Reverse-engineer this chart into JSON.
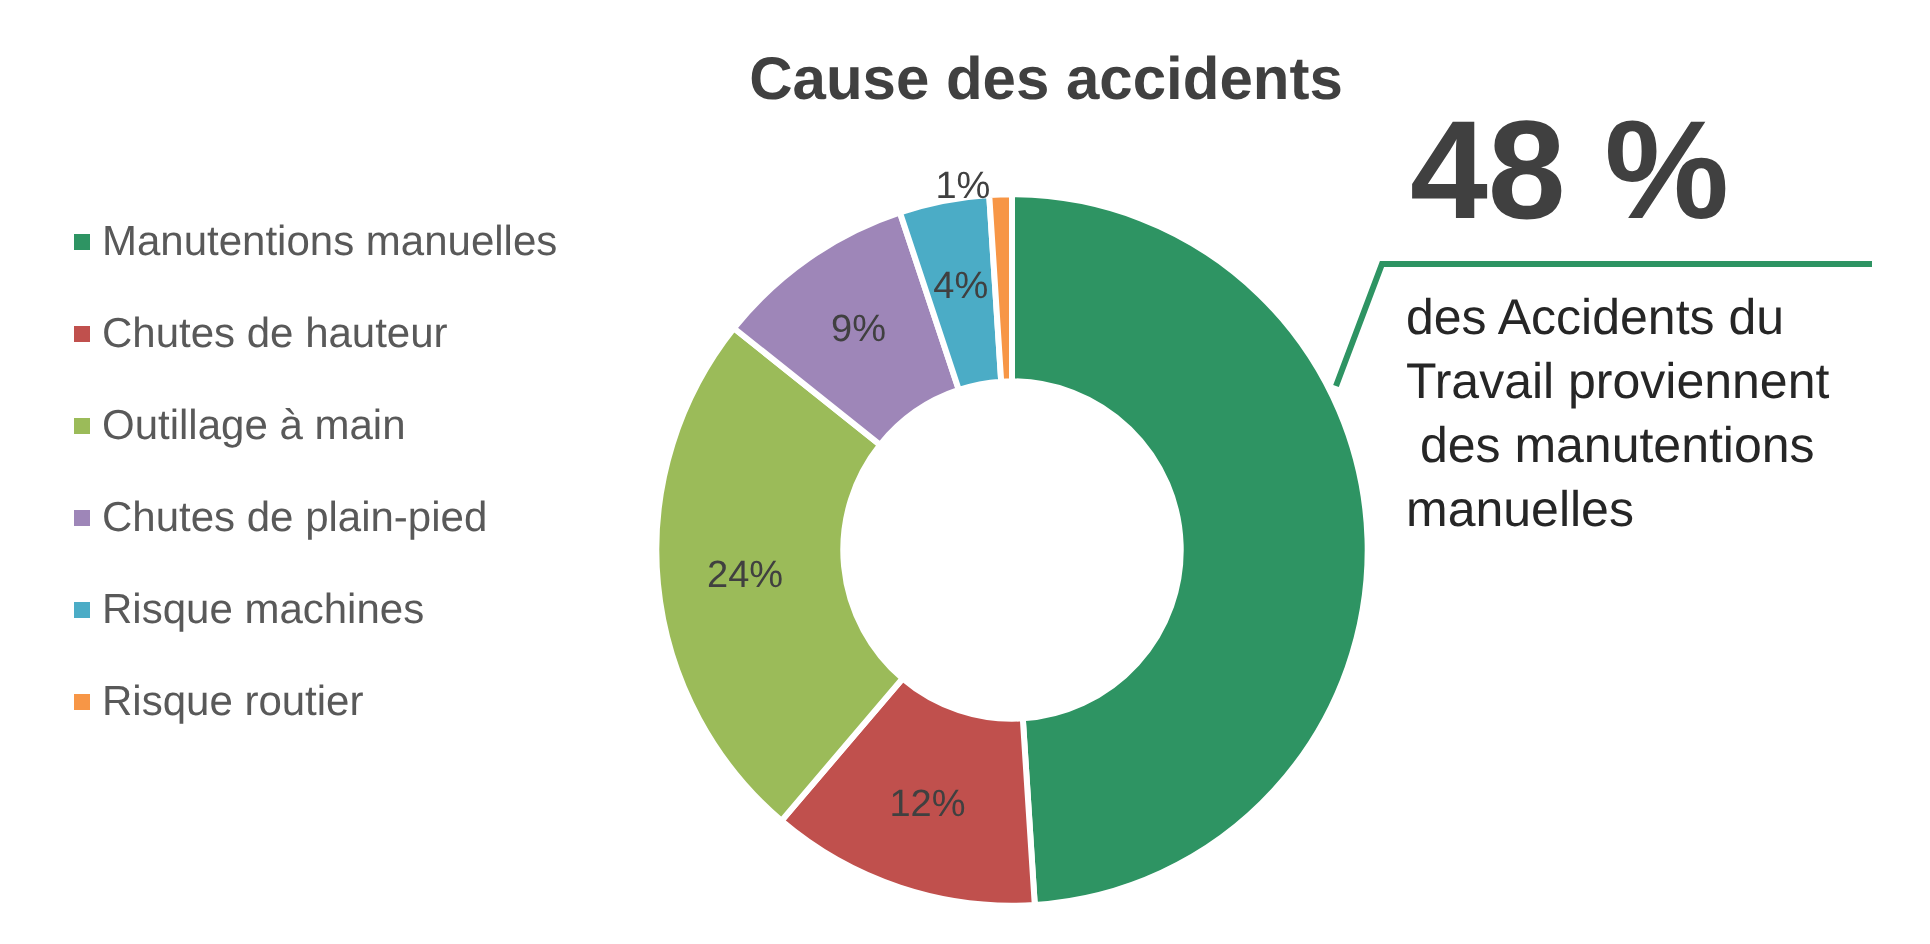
{
  "chart_data": {
    "type": "donut",
    "title": "Cause des accidents",
    "categories": [
      "Manutentions manuelles",
      "Chutes de hauteur",
      "Outillage à main",
      "Chutes de plain-pied",
      "Risque machines",
      "Risque routier"
    ],
    "values": [
      48,
      12,
      24,
      9,
      4,
      1
    ],
    "colors": [
      "#2e9463",
      "#c0504d",
      "#9bbb59",
      "#9e86b8",
      "#4bacc6",
      "#f79646"
    ],
    "value_labels": [
      null,
      "12%",
      "24%",
      "9%",
      "4%",
      "1%"
    ],
    "legend": "left",
    "annotations": [
      "48 %",
      "des Accidents du Travail proviennent des manutentions manuelles"
    ]
  }
}
